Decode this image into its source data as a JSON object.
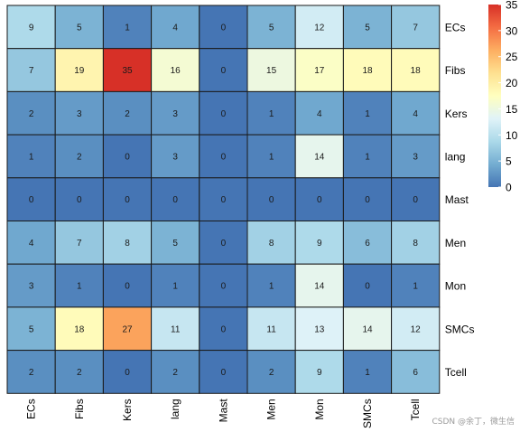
{
  "chart_data": {
    "type": "heatmap",
    "rows": [
      "ECs",
      "Fibs",
      "Kers",
      "lang",
      "Mast",
      "Men",
      "Mon",
      "SMCs",
      "Tcell"
    ],
    "columns": [
      "ECs",
      "Fibs",
      "Kers",
      "lang",
      "Mast",
      "Men",
      "Mon",
      "SMCs",
      "Tcell"
    ],
    "values": [
      [
        9,
        5,
        1,
        4,
        0,
        5,
        12,
        5,
        7
      ],
      [
        7,
        19,
        35,
        16,
        0,
        15,
        17,
        18,
        18
      ],
      [
        2,
        3,
        2,
        3,
        0,
        1,
        4,
        1,
        4
      ],
      [
        1,
        2,
        0,
        3,
        0,
        1,
        14,
        1,
        3
      ],
      [
        0,
        0,
        0,
        0,
        0,
        0,
        0,
        0,
        0
      ],
      [
        4,
        7,
        8,
        5,
        0,
        8,
        9,
        6,
        8
      ],
      [
        3,
        1,
        0,
        1,
        0,
        1,
        14,
        0,
        1
      ],
      [
        5,
        18,
        27,
        11,
        0,
        11,
        13,
        14,
        12
      ],
      [
        2,
        2,
        0,
        2,
        0,
        2,
        9,
        1,
        6
      ]
    ],
    "color_range": [
      0,
      35
    ],
    "legend_ticks": [
      0,
      5,
      10,
      15,
      20,
      25,
      30,
      35
    ],
    "legend_position": "top-right",
    "palette": [
      "#4575b4",
      "#74add1",
      "#abd9e9",
      "#e0f3f8",
      "#ffffbf",
      "#fee090",
      "#fdae61",
      "#f46d43",
      "#d73027"
    ],
    "grid": true
  },
  "watermark": "CSDN @余丁，微生信"
}
